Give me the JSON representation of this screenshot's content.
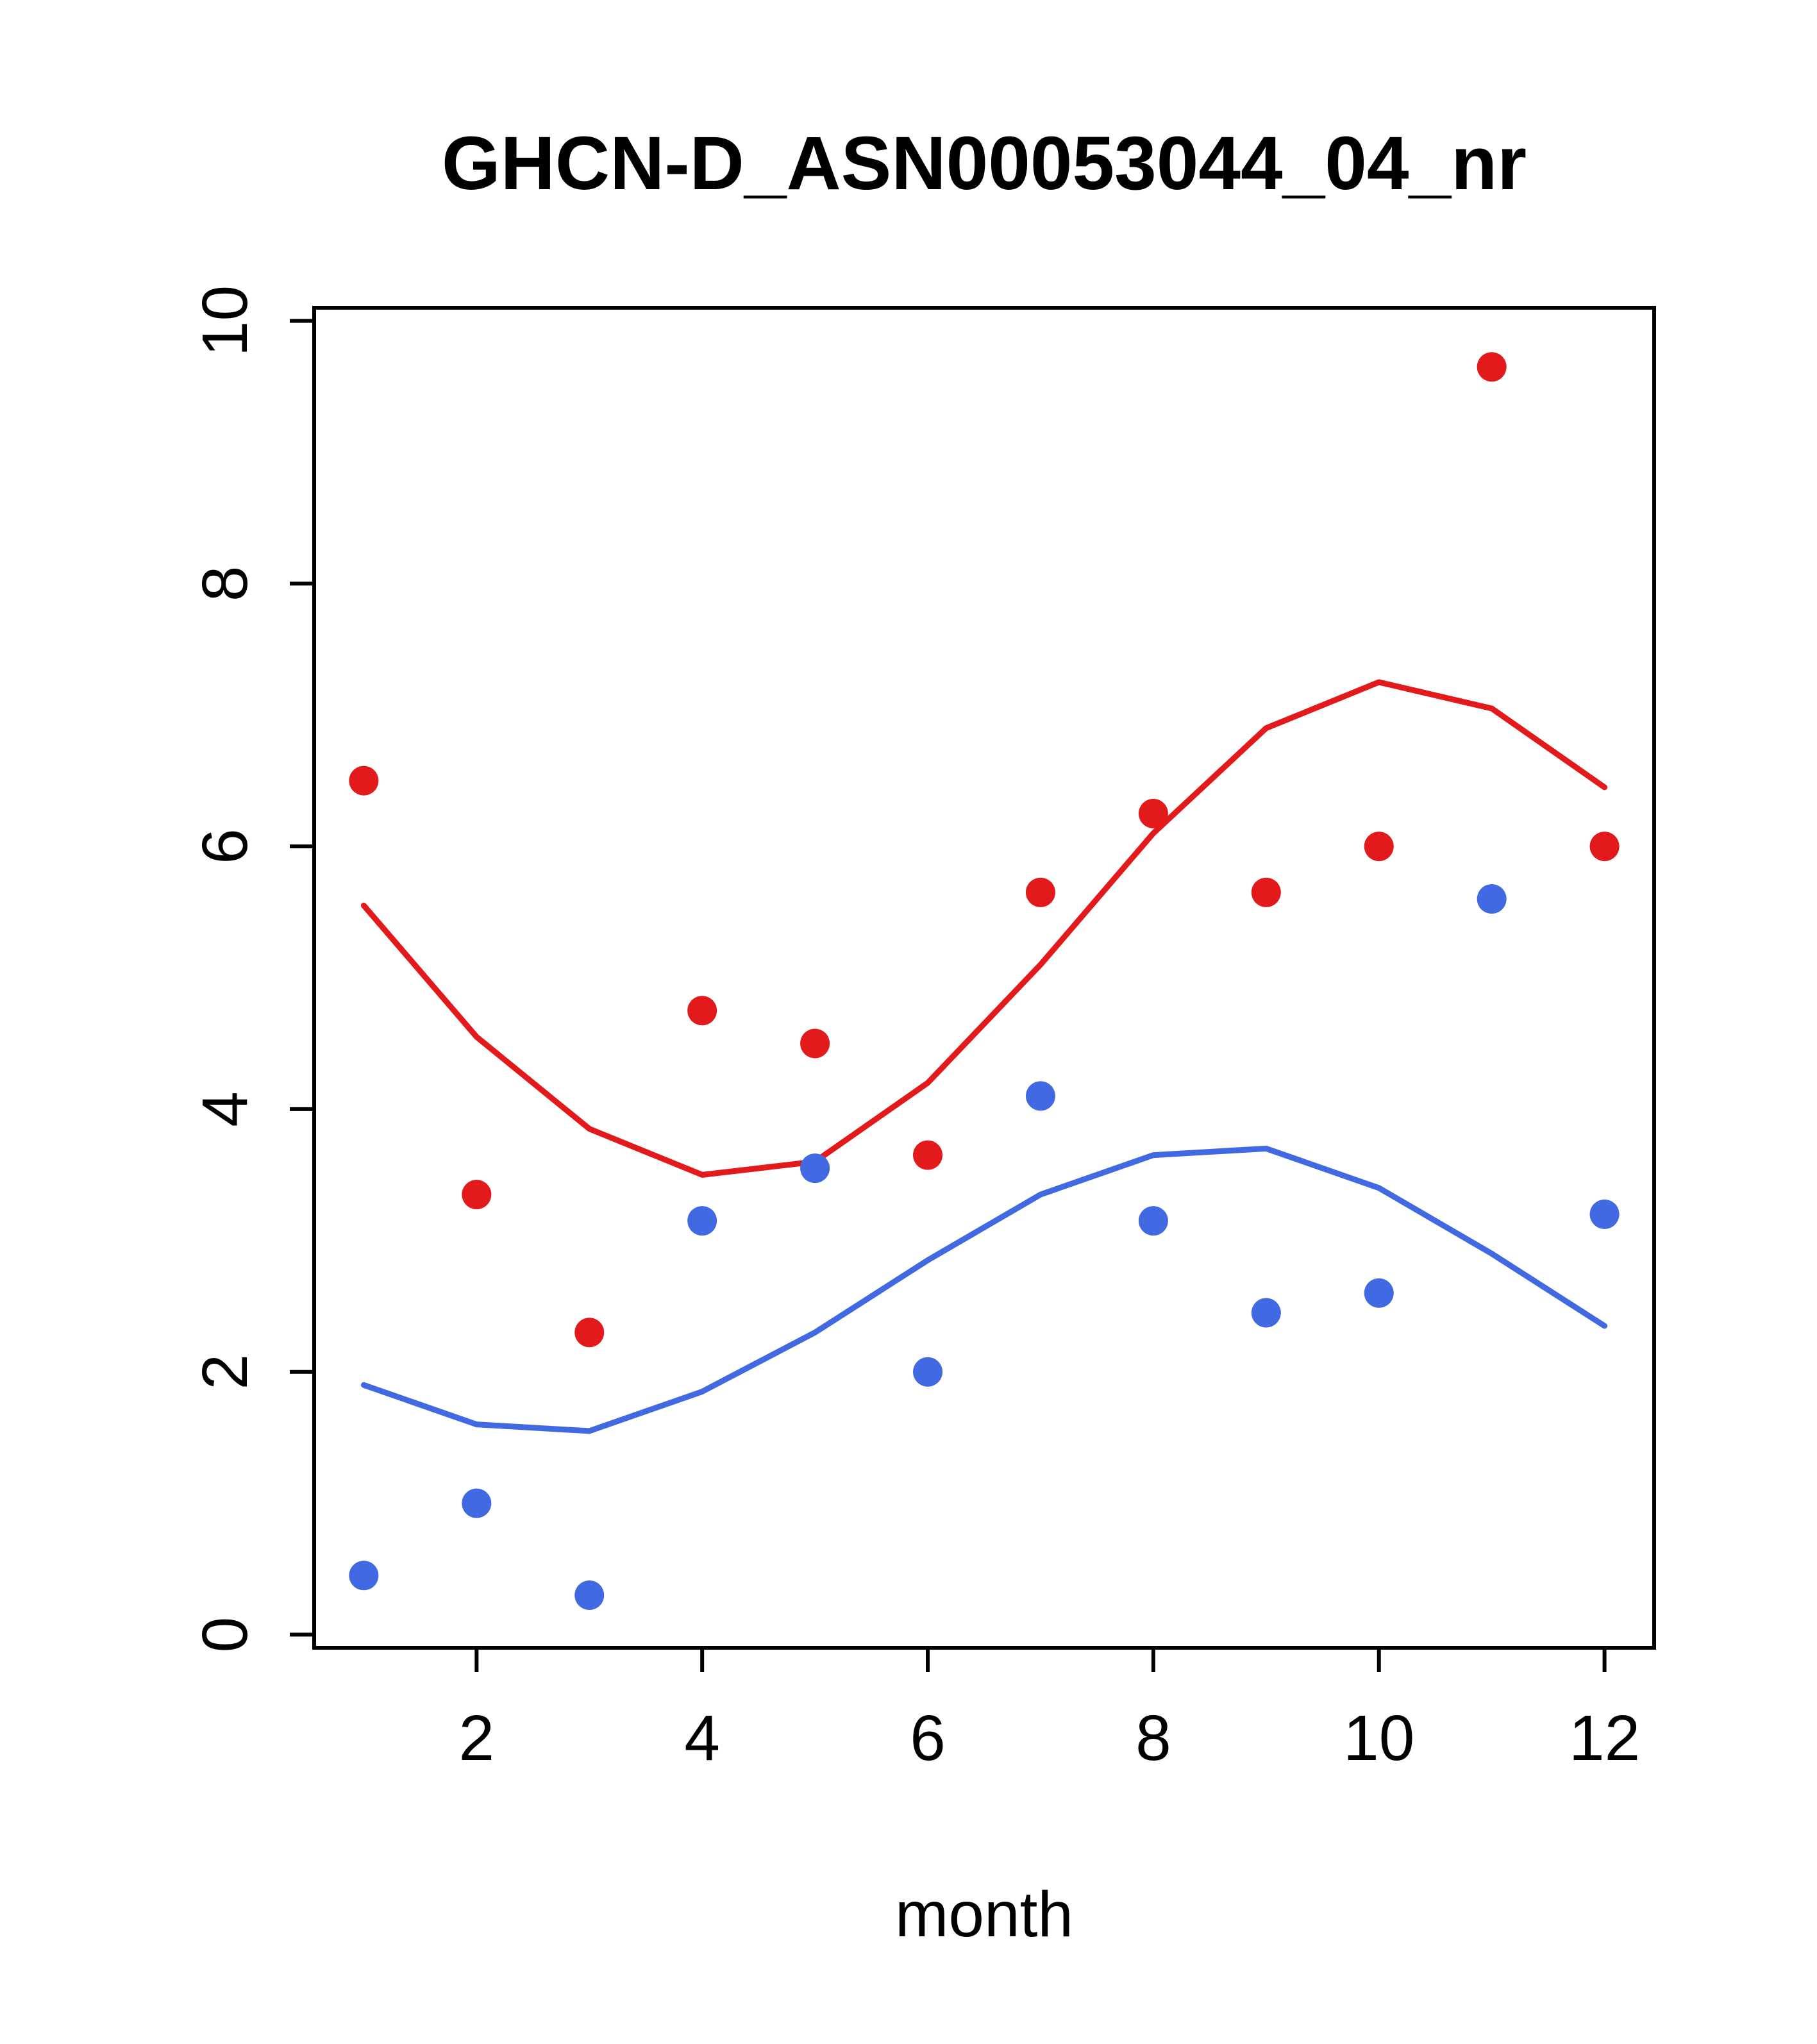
{
  "chart_data": {
    "type": "scatter",
    "title": "GHCN-D_ASN00053044_04_nr",
    "xlabel": "month",
    "ylabel": "",
    "xlim": [
      0.56,
      12.44
    ],
    "ylim": [
      -0.1,
      10.1
    ],
    "xticks": [
      2,
      4,
      6,
      8,
      10,
      12
    ],
    "yticks": [
      0,
      2,
      4,
      6,
      8,
      10
    ],
    "grid": false,
    "legend": "none",
    "colors": {
      "red": "#e31a1c",
      "blue": "#4169e1",
      "axis": "#000000"
    },
    "x": [
      1,
      2,
      3,
      4,
      5,
      6,
      7,
      8,
      9,
      10,
      11,
      12
    ],
    "series": [
      {
        "name": "red-points",
        "kind": "points",
        "color": "#e31a1c",
        "values": [
          6.5,
          3.35,
          2.3,
          4.75,
          4.5,
          3.65,
          5.65,
          6.25,
          5.65,
          6.0,
          9.65,
          6.0
        ]
      },
      {
        "name": "red-smooth-line",
        "kind": "line",
        "color": "#e31a1c",
        "values": [
          5.55,
          4.55,
          3.85,
          3.5,
          3.6,
          4.2,
          5.1,
          6.1,
          6.9,
          7.25,
          7.05,
          6.45
        ]
      },
      {
        "name": "blue-points",
        "kind": "points",
        "color": "#4169e1",
        "values": [
          0.45,
          1.0,
          0.3,
          3.15,
          3.55,
          2.0,
          4.1,
          3.15,
          2.45,
          2.6,
          5.6,
          3.2
        ]
      },
      {
        "name": "blue-smooth-line",
        "kind": "line",
        "color": "#4169e1",
        "values": [
          1.9,
          1.6,
          1.55,
          1.85,
          2.3,
          2.85,
          3.35,
          3.65,
          3.7,
          3.4,
          2.9,
          2.35
        ]
      }
    ]
  }
}
